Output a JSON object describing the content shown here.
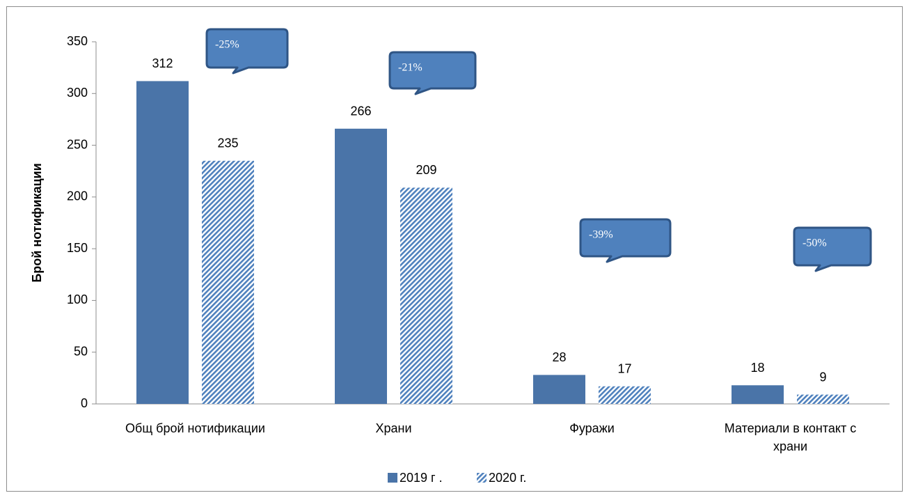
{
  "chart_data": {
    "type": "bar",
    "y_label": "Брой нотификации",
    "categories": [
      "Общ брой нотификации",
      "Храни",
      "Фуражи",
      "Материали в контакт с храни"
    ],
    "series": [
      {
        "name": "2019 г .",
        "color": "#4a74a8",
        "values": [
          312,
          266,
          28,
          18
        ]
      },
      {
        "name": "2020 г.",
        "color": "#4f81bd",
        "hatch": true,
        "values": [
          235,
          209,
          17,
          9
        ]
      }
    ],
    "annotations": [
      "-25%",
      "-21%",
      "-39%",
      "-50%"
    ],
    "ylim": [
      0,
      350
    ],
    "yticks": [
      0,
      50,
      100,
      150,
      200,
      250,
      300,
      350
    ],
    "grid": false
  }
}
